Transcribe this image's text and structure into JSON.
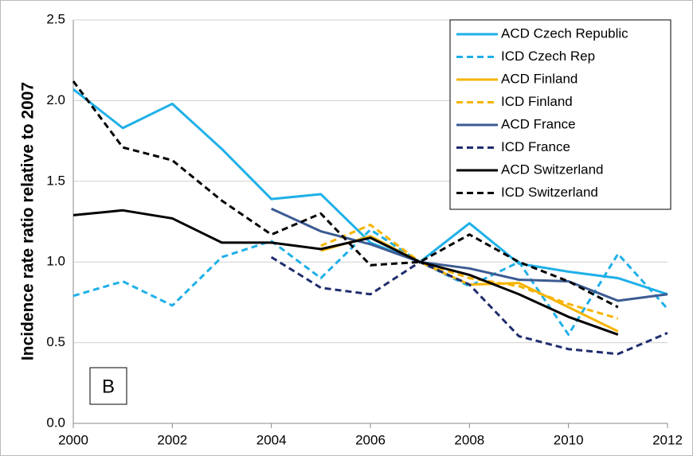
{
  "chart_data": {
    "type": "line",
    "y_label": "Incidence rate ratio relative to 2007",
    "annotation": "B",
    "x": [
      2000,
      2001,
      2002,
      2003,
      2004,
      2005,
      2006,
      2007,
      2008,
      2009,
      2010,
      2011,
      2012
    ],
    "xlim": [
      2000,
      2012
    ],
    "xticks": [
      2000,
      2002,
      2004,
      2006,
      2008,
      2010,
      2012
    ],
    "ylim": [
      0,
      2.5
    ],
    "yticks": [
      {
        "value": 0,
        "label": "0.0"
      },
      0.5,
      {
        "value": 1,
        "label": "1.0"
      },
      1.5,
      {
        "value": 2,
        "label": "2.0"
      },
      2.5
    ],
    "grid": true,
    "legend": "top-right",
    "series": [
      {
        "name": "ACD Czech Republic",
        "color": "#1fb0e8",
        "dashed": false,
        "values": [
          2.07,
          1.83,
          1.98,
          1.7,
          1.39,
          1.42,
          1.12,
          1.0,
          1.24,
          0.99,
          0.94,
          0.9,
          0.8
        ]
      },
      {
        "name": "ICD Czech Rep",
        "color": "#1fb0e8",
        "dashed": true,
        "values": [
          0.79,
          0.88,
          0.73,
          1.03,
          1.13,
          0.9,
          1.2,
          1.0,
          0.85,
          1.0,
          0.55,
          1.05,
          0.71
        ]
      },
      {
        "name": "ACD Finland",
        "color": "#f5b400",
        "dashed": false,
        "values": [
          null,
          null,
          null,
          null,
          null,
          1.07,
          1.16,
          1.0,
          0.86,
          0.87,
          0.72,
          0.57,
          null
        ]
      },
      {
        "name": "ICD Finland",
        "color": "#f5b400",
        "dashed": true,
        "values": [
          null,
          null,
          null,
          null,
          null,
          1.1,
          1.23,
          1.0,
          0.9,
          0.85,
          0.74,
          0.65,
          null
        ]
      },
      {
        "name": "ACD France",
        "color": "#3b5b92",
        "dashed": false,
        "values": [
          null,
          null,
          null,
          null,
          1.33,
          1.19,
          1.11,
          1.0,
          0.96,
          0.89,
          0.88,
          0.76,
          0.8
        ]
      },
      {
        "name": "ICD France",
        "color": "#1f2d6e",
        "dashed": true,
        "values": [
          null,
          null,
          null,
          null,
          1.03,
          0.84,
          0.8,
          1.0,
          0.86,
          0.54,
          0.46,
          0.43,
          0.56
        ]
      },
      {
        "name": "ACD Switzerland",
        "color": "#000000",
        "dashed": false,
        "values": [
          1.29,
          1.32,
          1.27,
          1.12,
          1.12,
          1.08,
          1.15,
          1.0,
          0.92,
          0.8,
          0.66,
          0.55,
          null
        ]
      },
      {
        "name": "ICD Switzerland",
        "color": "#000000",
        "dashed": true,
        "values": [
          2.12,
          1.71,
          1.63,
          1.38,
          1.17,
          1.3,
          0.98,
          1.0,
          1.17,
          1.0,
          0.88,
          0.72,
          null
        ]
      }
    ]
  }
}
